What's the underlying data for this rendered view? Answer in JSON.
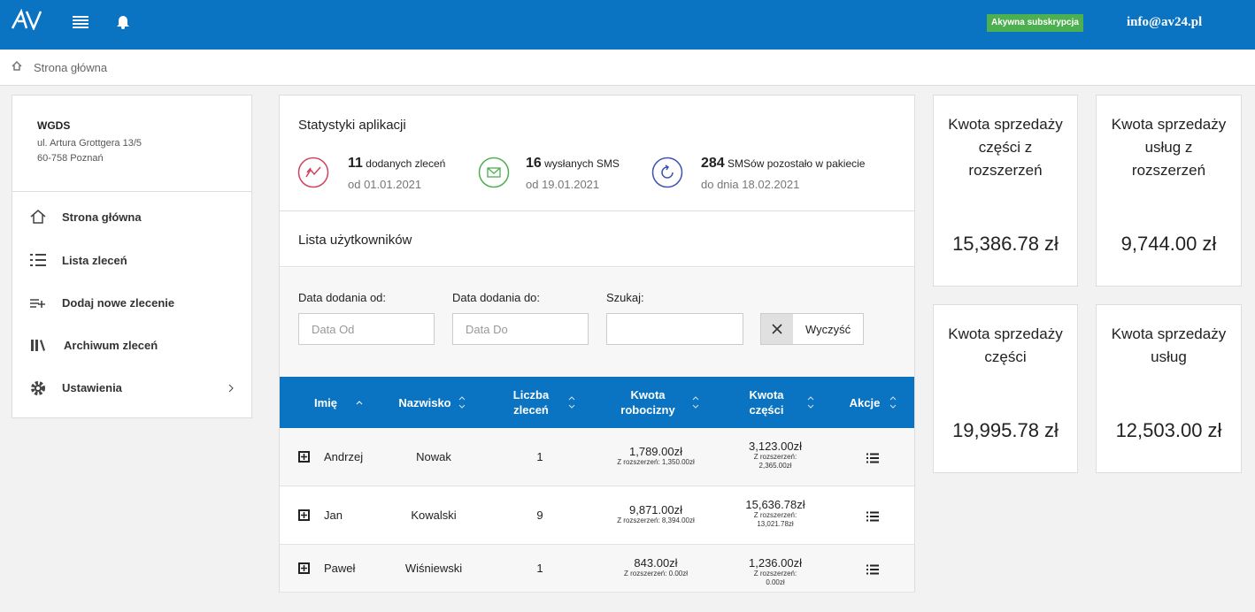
{
  "header": {
    "badge": "Akywna subskrypcja",
    "email": "info@av24.pl"
  },
  "breadcrumb": "Strona główna",
  "company": {
    "name": "WGDS",
    "address": "ul. Artura Grottgera 13/5",
    "city": "60-758 Poznań"
  },
  "menu": [
    "Strona główna",
    "Lista zleceń",
    "Dodaj nowe zlecenie",
    "Archiwum zleceń",
    "Ustawienia"
  ],
  "stats": {
    "title": "Statystyki aplikacji",
    "items": [
      {
        "value": 11,
        "label": "dodanych zleceń",
        "sub": "od 01.01.2021"
      },
      {
        "value": 16,
        "label": "wysłanych SMS",
        "sub": "od 19.01.2021"
      },
      {
        "value": 284,
        "label": "SMSów pozostało w pakiecie",
        "sub": "do dnia 18.02.2021"
      }
    ]
  },
  "users": {
    "title": "Lista użytkowników",
    "filters": [
      {
        "label": "Data dodania od:",
        "placeholder": "Data Od"
      },
      {
        "label": "Data dodania do:",
        "placeholder": "Data Do"
      },
      {
        "label": "Szukaj:"
      }
    ],
    "clear": "Wyczyść",
    "columns": [
      "Imię",
      "Nazwisko",
      "Liczba zleceń",
      "Kwota robocizny",
      "Kwota części",
      "Akcje"
    ],
    "rows": [
      {
        "first": "Andrzej",
        "last": "Nowak",
        "orders": 1,
        "labor": "1,789.00zł",
        "labor_ext": "Z rozszerzeń: 1,350.00zł",
        "parts": "3,123.00zł",
        "parts_ext": "Z rozszerzeń: 2,365.00zł"
      },
      {
        "first": "Jan",
        "last": "Kowalski",
        "orders": 9,
        "labor": "9,871.00zł",
        "labor_ext": "Z rozszerzeń: 8,394.00zł",
        "parts": "15,636.78zł",
        "parts_ext": "Z rozszerzeń: 13,021.78zł"
      },
      {
        "first": "Paweł",
        "last": "Wiśniewski",
        "orders": 1,
        "labor": "843.00zł",
        "labor_ext": "Z rozszerzeń: 0.00zł",
        "parts": "1,236.00zł",
        "parts_ext": "Z rozszerzeń: 0.00zł"
      }
    ]
  },
  "cards": [
    {
      "title": "Kwota sprzedaży części z rozszerzeń",
      "amount": "15,386.78 zł"
    },
    {
      "title": "Kwota sprzedaży usług z rozszerzeń",
      "amount": "9,744.00 zł"
    },
    {
      "title": "Kwota sprzedaży części",
      "amount": "19,995.78 zł"
    },
    {
      "title": "Kwota sprzedaży usług",
      "amount": "12,503.00 zł"
    }
  ]
}
